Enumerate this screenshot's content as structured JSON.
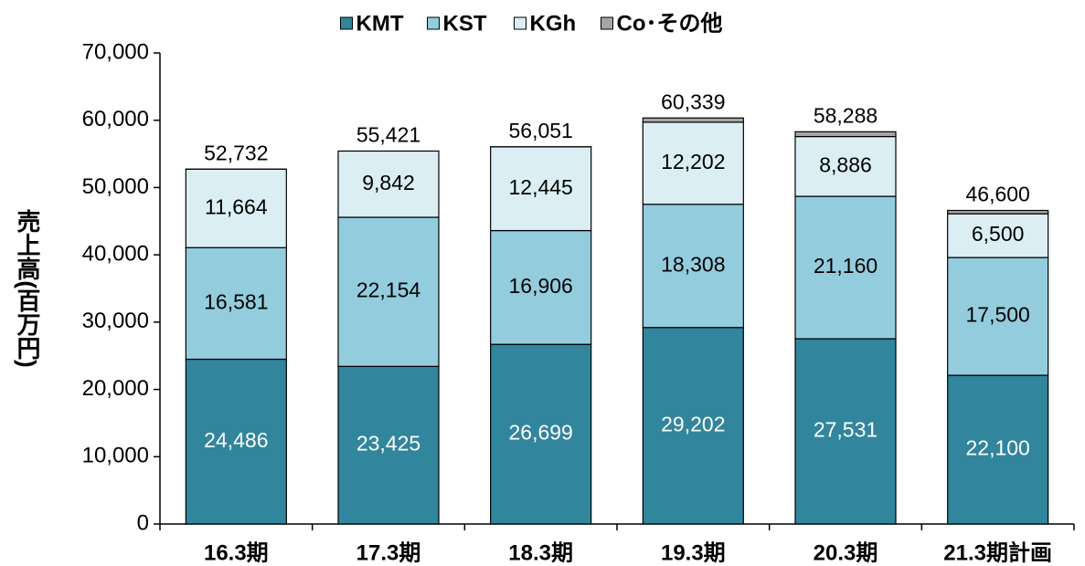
{
  "chart_data": {
    "type": "stacked_bar",
    "y_label": "売上高(百万円)",
    "categories": [
      "16.3期",
      "17.3期",
      "18.3期",
      "19.3期",
      "20.3期",
      "21.3期計画"
    ],
    "series": [
      {
        "name": "KMT",
        "color": "#31859c",
        "label_color": "#ffffff",
        "values": [
          24486,
          23425,
          26699,
          29202,
          27531,
          22100
        ],
        "value_labels": [
          "24,486",
          "23,425",
          "26,699",
          "29,202",
          "27,531",
          "22,100"
        ]
      },
      {
        "name": "KST",
        "color": "#93cddd",
        "label_color": "#000000",
        "values": [
          16581,
          22154,
          16906,
          18308,
          21160,
          17500
        ],
        "value_labels": [
          "16,581",
          "22,154",
          "16,906",
          "18,308",
          "21,160",
          "17,500"
        ]
      },
      {
        "name": "KGh",
        "color": "#dbeef4",
        "label_color": "#000000",
        "values": [
          11664,
          9842,
          12445,
          12202,
          8886,
          6500
        ],
        "value_labels": [
          "11,664",
          "9,842",
          "12,445",
          "12,202",
          "8,886",
          "6,500"
        ]
      },
      {
        "name": "Co･その他",
        "color": "#a6a6a6",
        "values": [
          1,
          0,
          1,
          627,
          711,
          500
        ]
      }
    ],
    "totals": {
      "values": [
        52732,
        55421,
        56051,
        60339,
        58288,
        46600
      ],
      "value_labels": [
        "52,732",
        "55,421",
        "56,051",
        "60,339",
        "58,288",
        "46,600"
      ]
    },
    "ylim": [
      0,
      70000
    ],
    "yticks": [
      0,
      {
        "value": 10000,
        "label": "10,000"
      },
      {
        "value": 20000,
        "label": "20,000"
      },
      {
        "value": 30000,
        "label": "30,000"
      },
      {
        "value": 40000,
        "label": "40,000"
      },
      {
        "value": 50000,
        "label": "50,000"
      },
      {
        "value": 60000,
        "label": "60,000"
      },
      {
        "value": 70000,
        "label": "70,000"
      }
    ],
    "legend": "top"
  }
}
